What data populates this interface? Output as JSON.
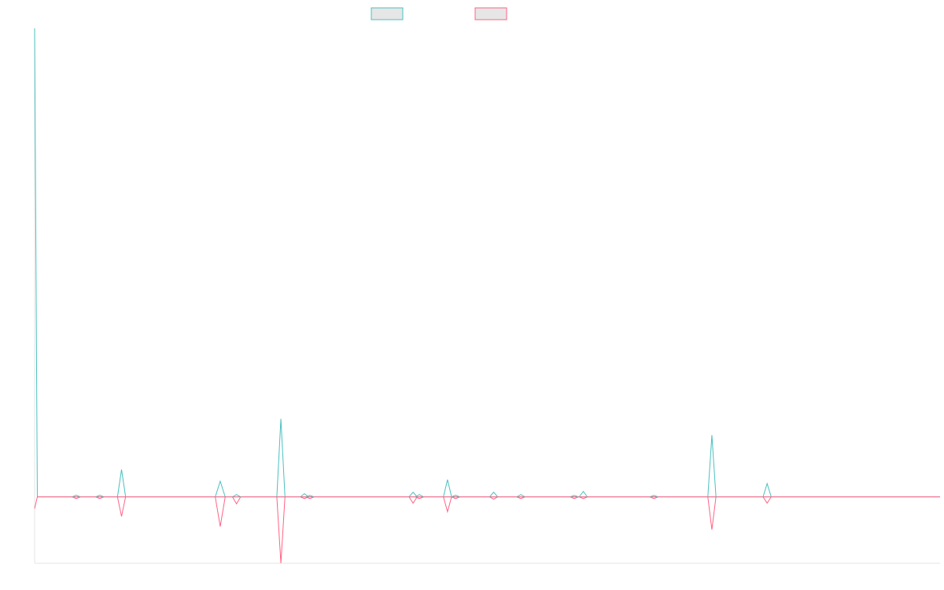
{
  "chart_data": {
    "type": "line",
    "title": "",
    "xlabel": "",
    "ylabel": "",
    "grid": false,
    "legend_position": "top",
    "x": [
      0,
      0.3,
      0.6,
      1,
      2,
      3,
      4,
      5,
      6,
      7,
      8,
      9,
      10,
      11,
      12,
      13,
      14,
      15,
      16,
      17,
      18,
      19,
      20,
      21,
      22,
      23,
      24,
      25,
      26,
      27,
      28,
      29,
      30,
      31,
      32,
      33,
      34,
      35,
      36,
      37,
      38,
      39,
      40,
      41,
      42,
      43,
      44,
      45,
      46,
      47,
      48,
      49,
      50,
      51,
      52,
      53,
      54,
      55,
      56,
      57,
      58,
      59,
      60,
      61,
      62,
      63,
      64,
      65,
      66,
      67,
      68,
      69,
      70,
      71,
      72,
      73,
      74,
      75,
      76,
      77,
      78,
      79,
      80,
      81,
      82,
      83,
      84,
      85,
      86,
      87,
      88,
      89,
      90,
      91,
      92,
      93,
      94,
      95,
      96,
      97,
      98,
      99,
      100
    ],
    "series": [
      {
        "name": "",
        "color": "#4bc0c0",
        "fill": "#e6e6e6",
        "values": [
          600,
          0,
          0,
          0,
          0,
          0,
          0,
          0,
          0,
          0,
          0,
          0,
          0,
          0,
          0,
          0,
          0,
          0,
          0,
          0,
          35,
          0,
          0,
          0,
          0,
          0,
          0,
          0,
          0,
          0,
          0,
          0,
          0,
          0,
          0,
          0,
          0,
          0,
          0,
          0,
          0,
          0,
          0,
          0,
          0,
          0,
          0,
          0,
          0,
          0,
          0,
          0,
          0,
          0,
          0,
          0,
          0,
          0,
          0,
          0,
          0,
          0,
          0,
          0,
          0,
          0,
          0,
          0,
          0,
          0,
          0,
          0,
          0,
          0,
          0,
          0,
          0,
          0,
          0,
          0,
          0,
          0,
          0,
          0,
          0,
          0,
          0,
          0,
          0,
          0,
          0,
          0,
          0,
          0,
          0,
          0,
          0,
          0,
          0,
          0,
          0,
          0,
          0
        ]
      },
      {
        "name": "",
        "color": "#ff6384",
        "fill": "#e6e6e6",
        "values": [
          -15,
          0,
          0,
          0,
          0,
          0,
          0,
          0,
          0,
          0,
          0,
          0,
          0,
          0,
          0,
          0,
          0,
          0,
          0,
          0,
          -25,
          0,
          0,
          0,
          0,
          0,
          0,
          0,
          0,
          0,
          0,
          0,
          0,
          0,
          0,
          0,
          0,
          0,
          0,
          0,
          0,
          0,
          0,
          0,
          0,
          0,
          0,
          0,
          0,
          0,
          0,
          0,
          0,
          0,
          0,
          0,
          0,
          0,
          0,
          0,
          0,
          0,
          0,
          0,
          0,
          0,
          0,
          0,
          0,
          0,
          0,
          0,
          0,
          0,
          0,
          0,
          0,
          0,
          0,
          0,
          0,
          0,
          0,
          0,
          0,
          0,
          0,
          0,
          0,
          0,
          0,
          0,
          0,
          0,
          0,
          0,
          0,
          0,
          0,
          0,
          0,
          0,
          0
        ]
      }
    ],
    "spikes": [
      {
        "x": 4.6,
        "up": 0,
        "down": 0,
        "w": 0.45
      },
      {
        "x": 7.2,
        "up": 0,
        "down": 0,
        "w": 0.45
      },
      {
        "x": 9.6,
        "up": 35,
        "down": -25,
        "w": 0.45
      },
      {
        "x": 20.5,
        "up": 20,
        "down": -38,
        "w": 0.55
      },
      {
        "x": 22.3,
        "up": 3,
        "down": -9,
        "w": 0.45
      },
      {
        "x": 27.2,
        "up": 100,
        "down": -85,
        "w": 0.45
      },
      {
        "x": 29.8,
        "up": 4,
        "down": 0,
        "w": 0.45
      },
      {
        "x": 30.4,
        "up": 2,
        "down": 0,
        "w": 0.45
      },
      {
        "x": 41.8,
        "up": 6,
        "down": -8,
        "w": 0.45
      },
      {
        "x": 42.5,
        "up": 3,
        "down": 0,
        "w": 0.45
      },
      {
        "x": 45.6,
        "up": 22,
        "down": -19,
        "w": 0.45
      },
      {
        "x": 46.5,
        "up": 0,
        "down": 0,
        "w": 0.45
      },
      {
        "x": 50.7,
        "up": 6,
        "down": -3,
        "w": 0.45
      },
      {
        "x": 53.7,
        "up": 3,
        "down": 0,
        "w": 0.45
      },
      {
        "x": 59.6,
        "up": 2,
        "down": 0,
        "w": 0.45
      },
      {
        "x": 60.6,
        "up": 7,
        "down": 0,
        "w": 0.45
      },
      {
        "x": 68.4,
        "up": 2,
        "down": 0,
        "w": 0.45
      },
      {
        "x": 74.8,
        "up": 79,
        "down": -42,
        "w": 0.45
      },
      {
        "x": 80.9,
        "up": 17,
        "down": -8,
        "w": 0.45
      }
    ],
    "xlim": [
      0,
      100
    ],
    "ylim": [
      -85,
      600
    ]
  }
}
